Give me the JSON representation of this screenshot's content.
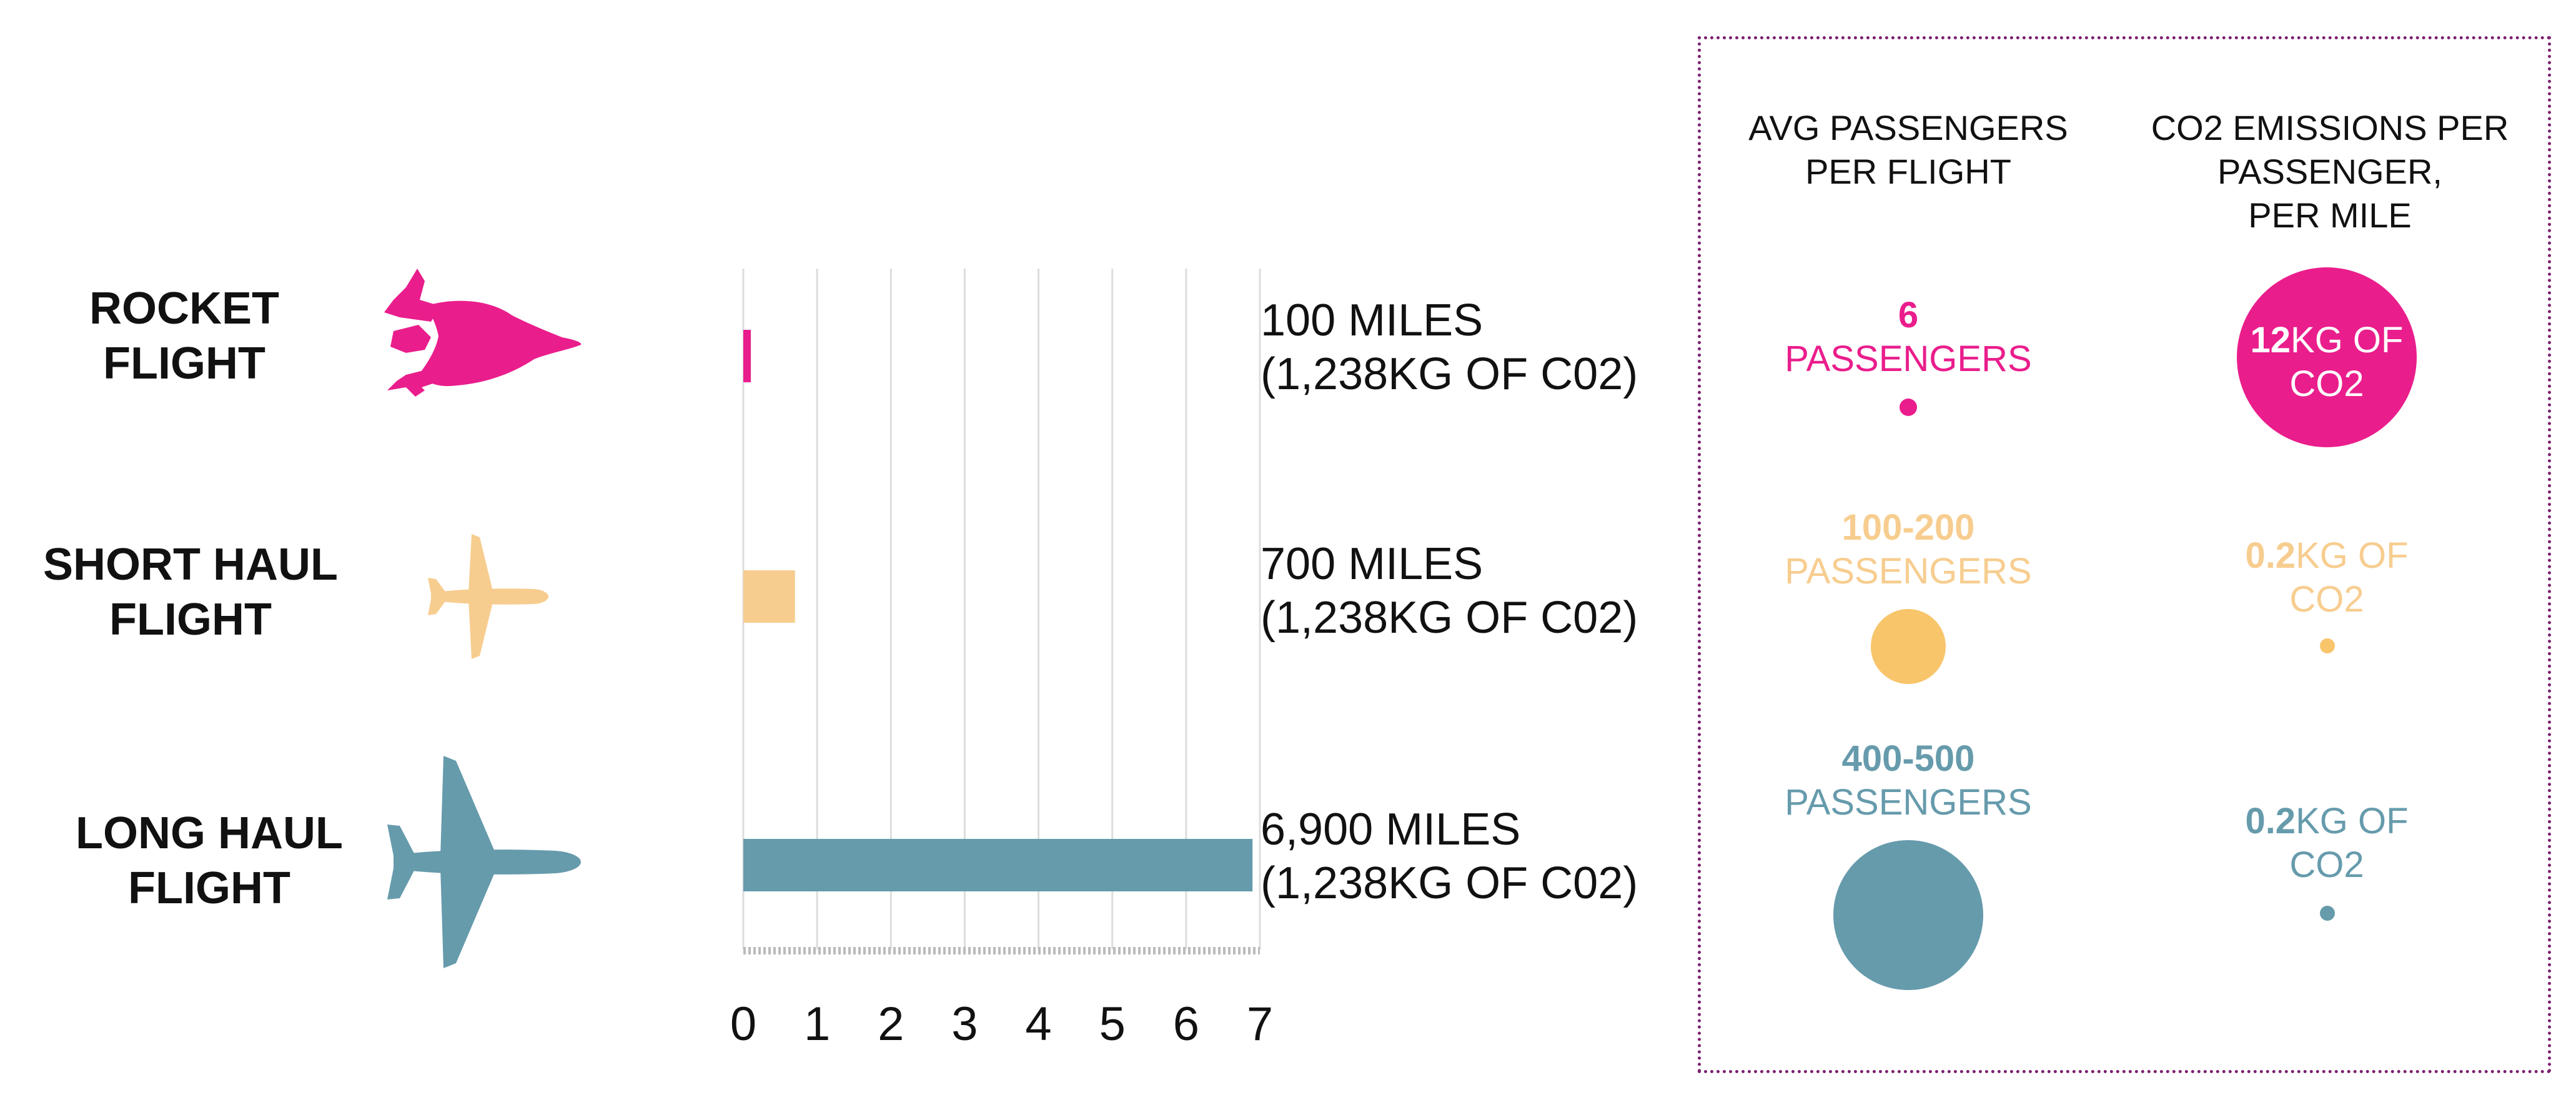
{
  "colors": {
    "rocket": "#ea1d8c",
    "short_haul": "#f7cd8f",
    "short_haul_dot": "#f8c56b",
    "long_haul": "#669bac",
    "grid": "#dddddd",
    "legend_border": "#7a1f6e"
  },
  "rows": [
    {
      "name_line1": "ROCKET",
      "name_line2": "FLIGHT",
      "icon": "rocket-icon",
      "distance": "100 MILES",
      "emissions": "(1,238KG OF C02)",
      "passengers_value": "6",
      "passengers_unit": "PASSENGERS",
      "co2_value": "12",
      "co2_unit": "KG OF",
      "co2_unit2": "CO2"
    },
    {
      "name_line1": "SHORT HAUL",
      "name_line2": "FLIGHT",
      "icon": "short-haul-airplane-icon",
      "distance": "700 MILES",
      "emissions": "(1,238KG OF C02)",
      "passengers_value": "100-200",
      "passengers_unit": "PASSENGERS",
      "co2_value": "0.2",
      "co2_unit": "KG OF",
      "co2_unit2": "CO2"
    },
    {
      "name_line1": "LONG HAUL",
      "name_line2": "FLIGHT",
      "icon": "long-haul-airplane-icon",
      "distance": "6,900 MILES",
      "emissions": "(1,238KG OF C02)",
      "passengers_value": "400-500",
      "passengers_unit": "PASSENGERS",
      "co2_value": "0.2",
      "co2_unit": "KG OF",
      "co2_unit2": "CO2"
    }
  ],
  "legend": {
    "col1_line1": "AVG PASSENGERS",
    "col1_line2": "PER FLIGHT",
    "col2_line1": "CO2 EMISSIONS PER",
    "col2_line2": "PASSENGER,",
    "col2_line3": "PER MILE"
  },
  "chart_data": {
    "type": "bar",
    "orientation": "horizontal",
    "categories": [
      "ROCKET FLIGHT",
      "SHORT HAUL FLIGHT",
      "LONG HAUL FLIGHT"
    ],
    "values": [
      0.1,
      0.7,
      6.9
    ],
    "xlim": [
      0,
      7
    ],
    "x_ticks": [
      "0",
      "1",
      "2",
      "3",
      "4",
      "5",
      "6",
      "7"
    ],
    "grid": true,
    "bar_colors": [
      "#ea1d8c",
      "#f7cd8f",
      "#669bac"
    ],
    "bubble_series": [
      {
        "passengers_approx": [
          6,
          150,
          450
        ]
      },
      {
        "co2_kg_per_passenger_mile": [
          12,
          0.2,
          0.2
        ]
      }
    ]
  }
}
